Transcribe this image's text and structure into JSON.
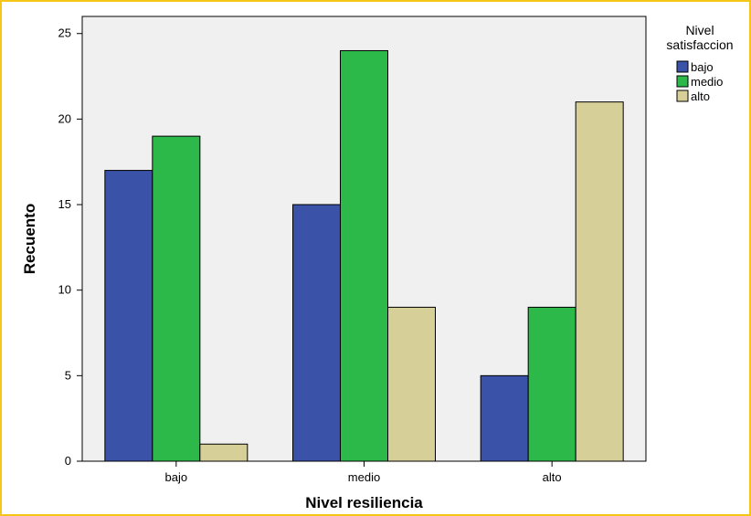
{
  "chart_data": {
    "type": "bar",
    "xlabel": "Nivel resiliencia",
    "ylabel": "Recuento",
    "categories": [
      "bajo",
      "medio",
      "alto"
    ],
    "ylim": [
      0,
      26
    ],
    "yticks": [
      0,
      5,
      10,
      15,
      20,
      25
    ],
    "grid": false,
    "legend": {
      "title_lines": [
        "Nivel",
        "satisfaccion"
      ],
      "placement": "top-right"
    },
    "series": [
      {
        "name": "bajo",
        "values": [
          17,
          15,
          5
        ],
        "color": "#3a52a8"
      },
      {
        "name": "medio",
        "values": [
          19,
          24,
          9
        ],
        "color": "#2db84a"
      },
      {
        "name": "alto",
        "values": [
          1,
          9,
          21
        ],
        "color": "#d6cf98"
      }
    ],
    "plot_background": "#f0f0f0",
    "border_color": "#f5c518"
  }
}
